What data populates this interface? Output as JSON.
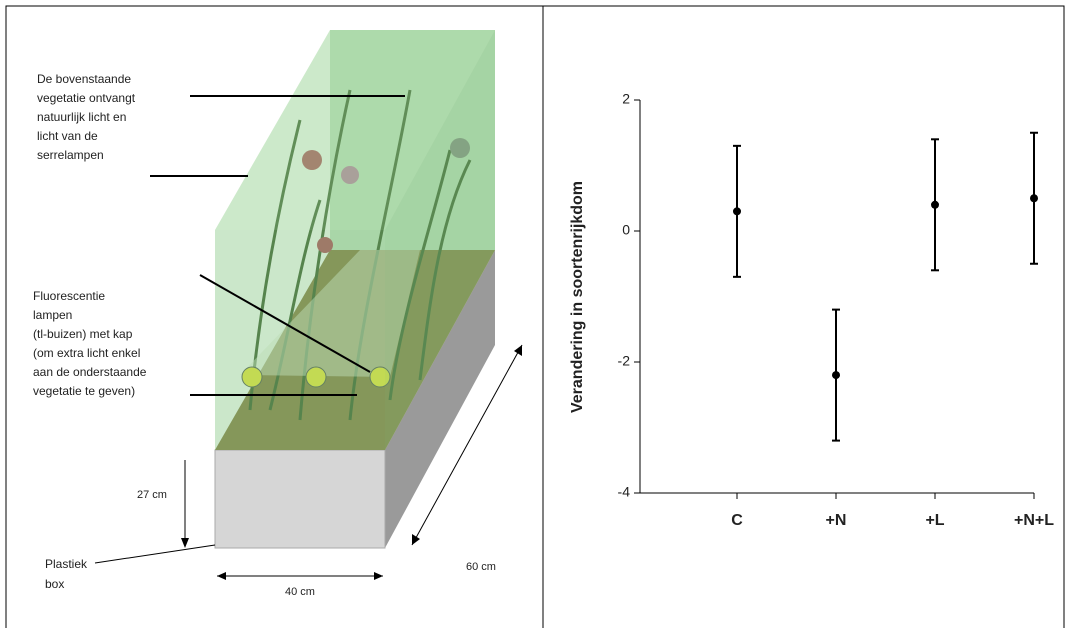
{
  "diagram": {
    "top_label": [
      "De bovenstaande",
      "vegetatie ontvangt",
      "natuurlijk licht en",
      "licht van de",
      "serrelampen"
    ],
    "lamp_label": [
      "Fluorescentie",
      "lampen",
      "(tl-buizen) met kap",
      "(om  extra licht enkel",
      "aan de onderstaande",
      "vegetatie te geven)"
    ],
    "height": "27 cm",
    "depth": "60 cm",
    "width": "40 cm",
    "box_label": [
      "Plastiek",
      "box"
    ]
  },
  "chart_data": {
    "type": "errorbar",
    "y_label": "Verandering in soortenrijkdom",
    "categories": [
      "C",
      "+N",
      "+L",
      "+N+L"
    ],
    "values": [
      0.3,
      -2.2,
      0.4,
      0.5
    ],
    "errors": [
      1.0,
      1.0,
      1.0,
      1.0
    ],
    "color": "#000000",
    "ylim": [
      -4,
      2
    ],
    "yticks": [
      -4,
      -2,
      0,
      2
    ]
  }
}
